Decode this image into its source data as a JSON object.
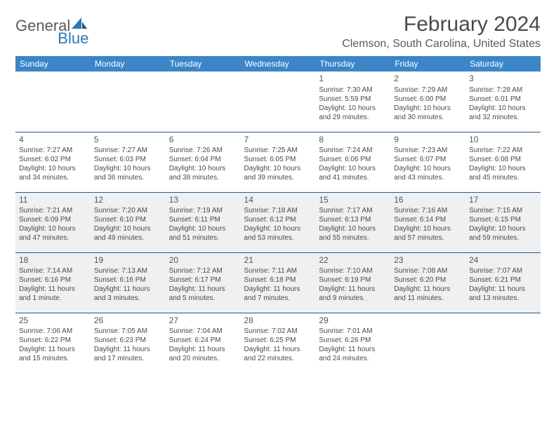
{
  "logo": {
    "word1": "General",
    "word2": "Blue",
    "sail_color": "#2e78b7"
  },
  "header": {
    "month_title": "February 2024",
    "location": "Clemson, South Carolina, United States"
  },
  "colors": {
    "header_bg": "#3a86c8",
    "header_text": "#ffffff",
    "row_divider": "#2a5a8a",
    "highlight_bg": "#eef0f1",
    "body_text": "#4a4a4a"
  },
  "weekdays": [
    "Sunday",
    "Monday",
    "Tuesday",
    "Wednesday",
    "Thursday",
    "Friday",
    "Saturday"
  ],
  "layout": {
    "first_day_column": 4,
    "days_in_month": 29
  },
  "days": {
    "1": {
      "sunrise": "7:30 AM",
      "sunset": "5:59 PM",
      "daylight": "10 hours and 29 minutes."
    },
    "2": {
      "sunrise": "7:29 AM",
      "sunset": "6:00 PM",
      "daylight": "10 hours and 30 minutes."
    },
    "3": {
      "sunrise": "7:28 AM",
      "sunset": "6:01 PM",
      "daylight": "10 hours and 32 minutes."
    },
    "4": {
      "sunrise": "7:27 AM",
      "sunset": "6:02 PM",
      "daylight": "10 hours and 34 minutes."
    },
    "5": {
      "sunrise": "7:27 AM",
      "sunset": "6:03 PM",
      "daylight": "10 hours and 36 minutes."
    },
    "6": {
      "sunrise": "7:26 AM",
      "sunset": "6:04 PM",
      "daylight": "10 hours and 38 minutes."
    },
    "7": {
      "sunrise": "7:25 AM",
      "sunset": "6:05 PM",
      "daylight": "10 hours and 39 minutes."
    },
    "8": {
      "sunrise": "7:24 AM",
      "sunset": "6:06 PM",
      "daylight": "10 hours and 41 minutes."
    },
    "9": {
      "sunrise": "7:23 AM",
      "sunset": "6:07 PM",
      "daylight": "10 hours and 43 minutes."
    },
    "10": {
      "sunrise": "7:22 AM",
      "sunset": "6:08 PM",
      "daylight": "10 hours and 45 minutes."
    },
    "11": {
      "sunrise": "7:21 AM",
      "sunset": "6:09 PM",
      "daylight": "10 hours and 47 minutes."
    },
    "12": {
      "sunrise": "7:20 AM",
      "sunset": "6:10 PM",
      "daylight": "10 hours and 49 minutes."
    },
    "13": {
      "sunrise": "7:19 AM",
      "sunset": "6:11 PM",
      "daylight": "10 hours and 51 minutes."
    },
    "14": {
      "sunrise": "7:18 AM",
      "sunset": "6:12 PM",
      "daylight": "10 hours and 53 minutes."
    },
    "15": {
      "sunrise": "7:17 AM",
      "sunset": "6:13 PM",
      "daylight": "10 hours and 55 minutes."
    },
    "16": {
      "sunrise": "7:16 AM",
      "sunset": "6:14 PM",
      "daylight": "10 hours and 57 minutes."
    },
    "17": {
      "sunrise": "7:15 AM",
      "sunset": "6:15 PM",
      "daylight": "10 hours and 59 minutes."
    },
    "18": {
      "sunrise": "7:14 AM",
      "sunset": "6:16 PM",
      "daylight": "11 hours and 1 minute."
    },
    "19": {
      "sunrise": "7:13 AM",
      "sunset": "6:16 PM",
      "daylight": "11 hours and 3 minutes."
    },
    "20": {
      "sunrise": "7:12 AM",
      "sunset": "6:17 PM",
      "daylight": "11 hours and 5 minutes."
    },
    "21": {
      "sunrise": "7:11 AM",
      "sunset": "6:18 PM",
      "daylight": "11 hours and 7 minutes."
    },
    "22": {
      "sunrise": "7:10 AM",
      "sunset": "6:19 PM",
      "daylight": "11 hours and 9 minutes."
    },
    "23": {
      "sunrise": "7:08 AM",
      "sunset": "6:20 PM",
      "daylight": "11 hours and 11 minutes."
    },
    "24": {
      "sunrise": "7:07 AM",
      "sunset": "6:21 PM",
      "daylight": "11 hours and 13 minutes."
    },
    "25": {
      "sunrise": "7:06 AM",
      "sunset": "6:22 PM",
      "daylight": "11 hours and 15 minutes."
    },
    "26": {
      "sunrise": "7:05 AM",
      "sunset": "6:23 PM",
      "daylight": "11 hours and 17 minutes."
    },
    "27": {
      "sunrise": "7:04 AM",
      "sunset": "6:24 PM",
      "daylight": "11 hours and 20 minutes."
    },
    "28": {
      "sunrise": "7:02 AM",
      "sunset": "6:25 PM",
      "daylight": "11 hours and 22 minutes."
    },
    "29": {
      "sunrise": "7:01 AM",
      "sunset": "6:26 PM",
      "daylight": "11 hours and 24 minutes."
    }
  },
  "highlight_rows": [
    2,
    3
  ],
  "labels": {
    "sunrise": "Sunrise: ",
    "sunset": "Sunset: ",
    "daylight": "Daylight: "
  }
}
